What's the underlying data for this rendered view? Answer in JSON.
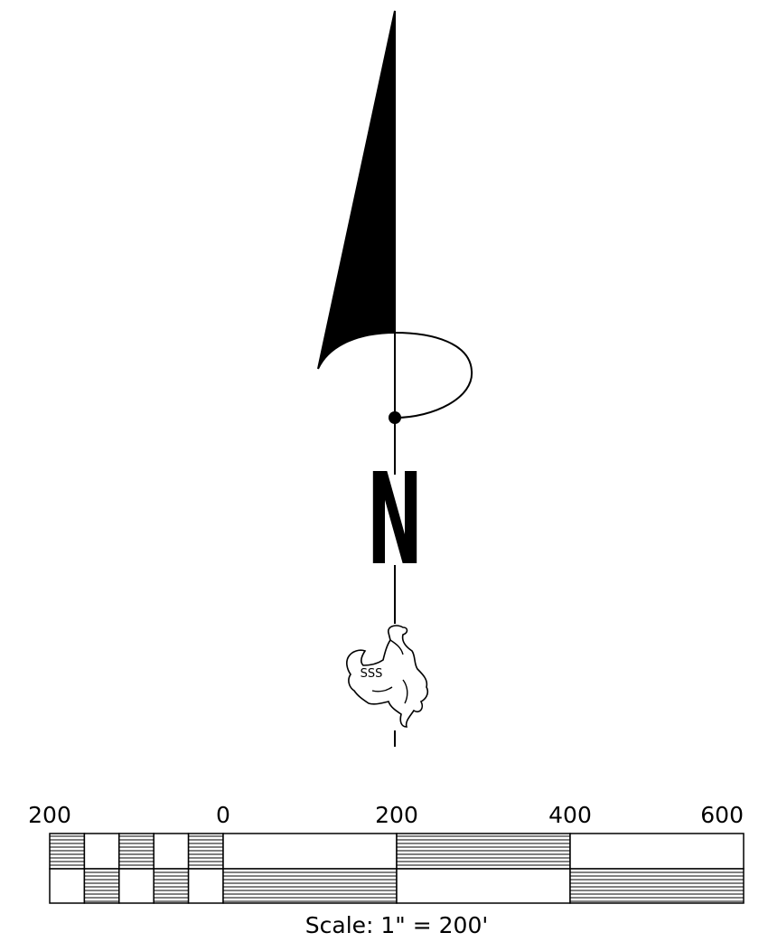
{
  "north_arrow": {
    "letter": "N",
    "logo_text": "SSS"
  },
  "scale_bar": {
    "tick_labels": [
      "200",
      "0",
      "200",
      "400",
      "600"
    ],
    "caption": "Scale:  1\"  =  200'",
    "color": "#000000"
  }
}
